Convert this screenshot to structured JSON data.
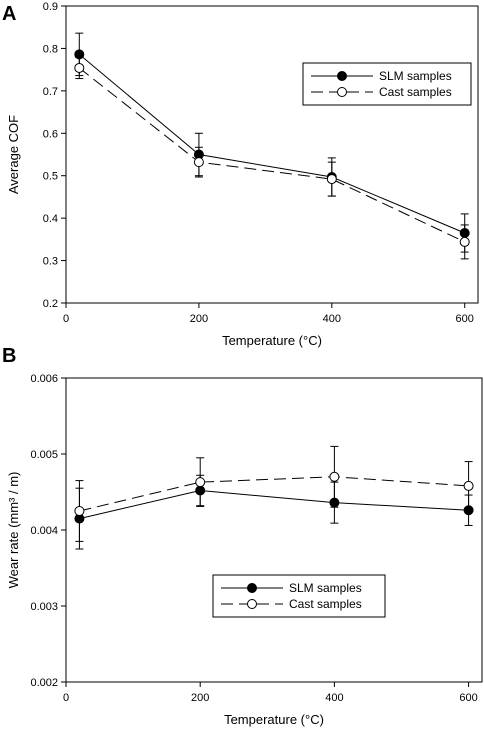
{
  "chart_data": [
    {
      "type": "line",
      "panel_label": "A",
      "xlabel": "Temperature (°C)",
      "ylabel": "Average COF",
      "xlim": [
        0,
        620
      ],
      "ylim": [
        0.2,
        0.9
      ],
      "x_ticks": [
        0,
        200,
        400,
        600
      ],
      "y_ticks": [
        0.2,
        0.3,
        0.4,
        0.5,
        0.6,
        0.7,
        0.8,
        0.9
      ],
      "y_decimals": 1,
      "legend_position": "top-right",
      "grid": false,
      "series": [
        {
          "name": "SLM samples",
          "marker": "filled-circle",
          "line": "solid",
          "x": [
            20,
            200,
            400,
            600
          ],
          "y": [
            0.786,
            0.55,
            0.497,
            0.365
          ],
          "err": [
            0.05,
            0.05,
            0.045,
            0.045
          ]
        },
        {
          "name": "Cast samples",
          "marker": "open-circle",
          "line": "dashed",
          "x": [
            20,
            200,
            400,
            600
          ],
          "y": [
            0.754,
            0.532,
            0.492,
            0.344
          ],
          "err": [
            0.025,
            0.035,
            0.04,
            0.04
          ]
        }
      ]
    },
    {
      "type": "line",
      "panel_label": "B",
      "xlabel": "Temperature (°C)",
      "ylabel": "Wear rate (mm³ / m)",
      "xlim": [
        0,
        620
      ],
      "ylim": [
        0.002,
        0.006
      ],
      "x_ticks": [
        0,
        200,
        400,
        600
      ],
      "y_ticks": [
        0.002,
        0.003,
        0.004,
        0.005,
        0.006
      ],
      "y_decimals": 3,
      "legend_position": "bottom-center",
      "grid": false,
      "series": [
        {
          "name": "SLM samples",
          "marker": "filled-circle",
          "line": "solid",
          "x": [
            20,
            200,
            400,
            600
          ],
          "y": [
            0.00415,
            0.00452,
            0.00436,
            0.00426
          ],
          "err": [
            0.0004,
            0.0002,
            0.00027,
            0.0002
          ]
        },
        {
          "name": "Cast samples",
          "marker": "open-circle",
          "line": "dashed",
          "x": [
            20,
            200,
            400,
            600
          ],
          "y": [
            0.00425,
            0.00463,
            0.0047,
            0.00458
          ],
          "err": [
            0.0004,
            0.00032,
            0.0004,
            0.00032
          ]
        }
      ]
    }
  ]
}
